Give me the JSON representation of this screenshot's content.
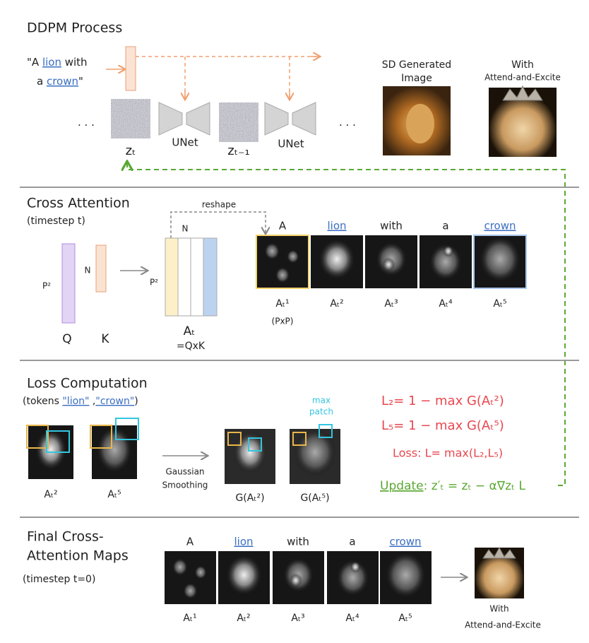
{
  "ddpm": {
    "title": "DDPM Process",
    "prompt_line1": [
      "\"A ",
      "lion",
      " with"
    ],
    "prompt_line2": [
      "a ",
      "crown",
      "\""
    ],
    "ellipsis_left": "· · ·",
    "ellipsis_right": "· · ·",
    "latent_t": "zₜ",
    "latent_t_minus_1": "zₜ₋₁",
    "unet_labels": [
      "UNet",
      "UNet"
    ],
    "sd_label": [
      "SD Generated",
      "Image"
    ],
    "ae_label": [
      "With",
      "Attend-and-Excite"
    ]
  },
  "cross_attention": {
    "title": "Cross Attention",
    "subtitle": "(timestep t)",
    "reshape": "reshape",
    "q_dim": "P²",
    "k_dim": "N",
    "a_rows": "P²",
    "a_cols": "N",
    "q": "Q",
    "k": "K",
    "a": "Aₜ",
    "a_def": "=QxK",
    "tokens": [
      "A",
      "lion",
      "with",
      "a",
      "crown"
    ],
    "map_labels": [
      "Aₜ¹",
      "Aₜ²",
      "Aₜ³",
      "Aₜ⁴",
      "Aₜ⁵"
    ],
    "map_size": "(PxP)"
  },
  "loss": {
    "title": "Loss Computation",
    "subtitle": [
      "(tokens ",
      "\"lion\"",
      " ,",
      "\"crown\"",
      ")"
    ],
    "map_labels": [
      "Aₜ²",
      "Aₜ⁵"
    ],
    "smoothing": [
      "Gaussian",
      "Smoothing"
    ],
    "smoothed_labels": [
      "G(Aₜ²)",
      "G(Aₜ⁵)"
    ],
    "max_patch": [
      "max",
      "patch"
    ],
    "eq_l2": "L₂= 1 − max G(Aₜ²)",
    "eq_l5": "L₅= 1 − max G(Aₜ⁵)",
    "eq_loss": "Loss: L= max(L₂,L₅)",
    "update": [
      "Update",
      ": z′ₜ = zₜ − α∇zₜ L"
    ]
  },
  "final": {
    "title": [
      "Final Cross-",
      "Attention Maps"
    ],
    "subtitle": "(timestep t=0)",
    "tokens": [
      "A",
      "lion",
      "with",
      "a",
      "crown"
    ],
    "map_labels": [
      "Aₜ¹",
      "Aₜ²",
      "Aₜ³",
      "Aₜ⁴",
      "Aₜ⁵"
    ],
    "result_label": [
      "With",
      "Attend-and-Excite"
    ]
  }
}
